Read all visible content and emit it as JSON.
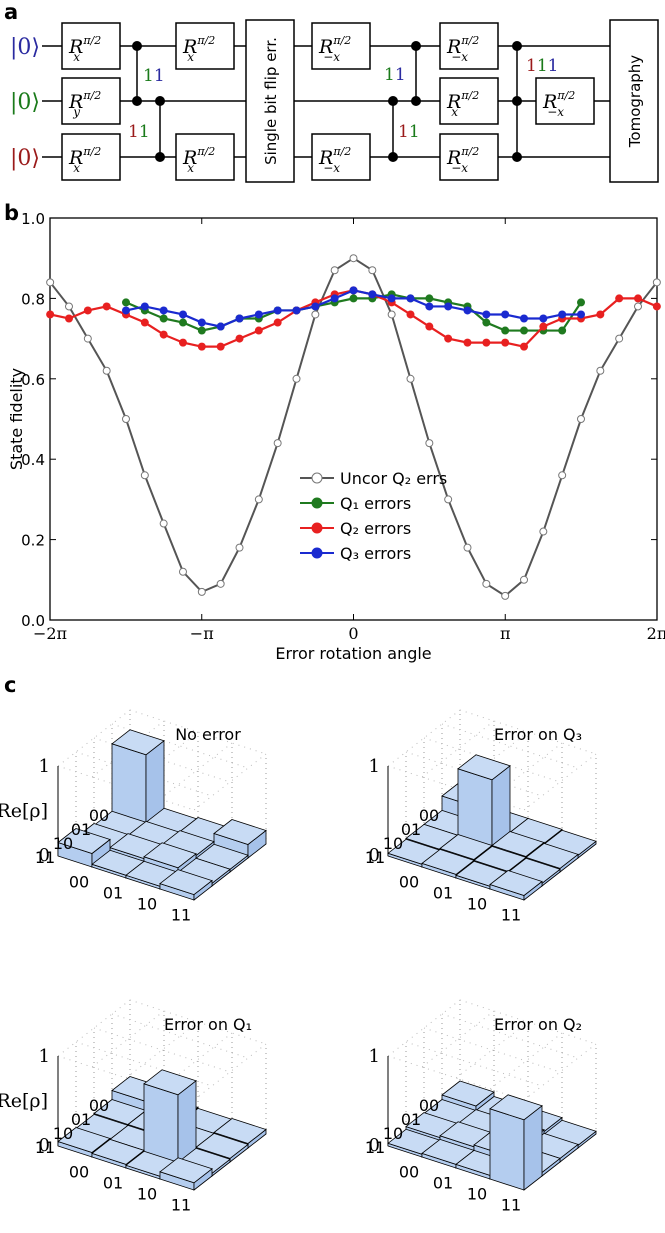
{
  "panels": {
    "a": "a",
    "b": "b",
    "c": "c"
  },
  "circuit": {
    "kets": [
      "|0⟩",
      "|0⟩",
      "|0⟩"
    ],
    "ket_colors": [
      "#2a2aa0",
      "#1a7a1a",
      "#9a1a1a"
    ],
    "gate_R": "R",
    "sub_x": "x",
    "sub_y": "y",
    "sub_negx": "−x",
    "sup_pi2": "π/2",
    "error_box": "Single bit flip err.",
    "tomography": "Tomography",
    "labels": {
      "d1_top": "11",
      "d1_bot": "11",
      "d2_top": "11",
      "d2_bot": "11",
      "d3": "111"
    },
    "label_colors": {
      "green": "#1a7a1a",
      "blue": "#2a2aa0",
      "red": "#9a1a1a"
    }
  },
  "chart_data": {
    "type": "line",
    "xlabel": "Error rotation angle",
    "ylabel": "State fidelity",
    "xlim": [
      -6.2832,
      6.2832
    ],
    "ylim": [
      0,
      1
    ],
    "x_ticks": [
      "−2π",
      "−π",
      "0",
      "π",
      "2π"
    ],
    "y_ticks": [
      "0.0",
      "0.2",
      "0.4",
      "0.6",
      "0.8",
      "1.0"
    ],
    "legend_placement": "center",
    "series": [
      {
        "name": "Uncor Q₂ errs",
        "color": "#555555",
        "x": [
          -6.28,
          -5.89,
          -5.5,
          -5.11,
          -4.71,
          -4.32,
          -3.93,
          -3.53,
          -3.14,
          -2.75,
          -2.36,
          -1.96,
          -1.57,
          -1.18,
          -0.79,
          -0.39,
          0.0,
          0.39,
          0.79,
          1.18,
          1.57,
          1.96,
          2.36,
          2.75,
          3.14,
          3.53,
          3.93,
          4.32,
          4.71,
          5.11,
          5.5,
          5.89,
          6.28
        ],
        "y": [
          0.84,
          0.78,
          0.7,
          0.62,
          0.5,
          0.36,
          0.24,
          0.12,
          0.07,
          0.09,
          0.18,
          0.3,
          0.44,
          0.6,
          0.76,
          0.87,
          0.9,
          0.87,
          0.76,
          0.6,
          0.44,
          0.3,
          0.18,
          0.09,
          0.06,
          0.1,
          0.22,
          0.36,
          0.5,
          0.62,
          0.7,
          0.78,
          0.84
        ]
      },
      {
        "name": "Q₁ errors",
        "color": "#1f7a1f",
        "x": [
          -4.71,
          -4.32,
          -3.93,
          -3.53,
          -3.14,
          -2.75,
          -2.36,
          -1.96,
          -1.57,
          -1.18,
          -0.79,
          -0.39,
          0.0,
          0.39,
          0.79,
          1.18,
          1.57,
          1.96,
          2.36,
          2.75,
          3.14,
          3.53,
          3.93,
          4.32,
          4.71
        ],
        "y": [
          0.79,
          0.77,
          0.75,
          0.74,
          0.72,
          0.73,
          0.75,
          0.75,
          0.77,
          0.77,
          0.78,
          0.79,
          0.8,
          0.8,
          0.81,
          0.8,
          0.8,
          0.79,
          0.78,
          0.74,
          0.72,
          0.72,
          0.72,
          0.72,
          0.79
        ],
        "x_extra": []
      },
      {
        "name": "Q₂ errors",
        "color": "#e82020",
        "x": [
          -6.28,
          -5.89,
          -5.5,
          -5.11,
          -4.71,
          -4.32,
          -3.93,
          -3.53,
          -3.14,
          -2.75,
          -2.36,
          -1.96,
          -1.57,
          -1.18,
          -0.79,
          -0.39,
          0.0,
          0.39,
          0.79,
          1.18,
          1.57,
          1.96,
          2.36,
          2.75,
          3.14,
          3.53,
          3.93,
          4.32,
          4.71,
          5.11,
          5.5,
          5.89,
          6.28
        ],
        "y": [
          0.76,
          0.75,
          0.77,
          0.78,
          0.76,
          0.74,
          0.71,
          0.69,
          0.68,
          0.68,
          0.7,
          0.72,
          0.74,
          0.77,
          0.79,
          0.81,
          0.82,
          0.81,
          0.79,
          0.76,
          0.73,
          0.7,
          0.69,
          0.69,
          0.69,
          0.68,
          0.73,
          0.75,
          0.75,
          0.76,
          0.8,
          0.8,
          0.78
        ]
      },
      {
        "name": "Q₃ errors",
        "color": "#1a2ad0",
        "x": [
          -4.71,
          -4.32,
          -3.93,
          -3.53,
          -3.14,
          -2.75,
          -2.36,
          -1.96,
          -1.57,
          -1.18,
          -0.79,
          -0.39,
          0.0,
          0.39,
          0.79,
          1.18,
          1.57,
          1.96,
          2.36,
          2.75,
          3.14,
          3.53,
          3.93,
          4.32,
          4.71
        ],
        "y": [
          0.77,
          0.78,
          0.77,
          0.76,
          0.74,
          0.73,
          0.75,
          0.76,
          0.77,
          0.77,
          0.78,
          0.8,
          0.82,
          0.81,
          0.8,
          0.8,
          0.78,
          0.78,
          0.77,
          0.76,
          0.76,
          0.75,
          0.75,
          0.76,
          0.76
        ]
      }
    ]
  },
  "bars3d": {
    "zlabel": "Re[ρ]",
    "z_ticks": [
      "0",
      "1"
    ],
    "axis_labels": [
      "00",
      "01",
      "10",
      "11"
    ],
    "titles": [
      "No error",
      "Error on Q₃",
      "Error on Q₁",
      "Error on Q₂"
    ],
    "matrices": [
      [
        [
          0.78,
          0.03,
          0.05,
          0.15
        ],
        [
          0.03,
          0.04,
          0.06,
          0.03
        ],
        [
          0.05,
          0.06,
          0.08,
          0.03
        ],
        [
          0.15,
          0.03,
          0.03,
          0.06
        ]
      ],
      [
        [
          0.2,
          0.04,
          0.04,
          0.03
        ],
        [
          0.04,
          0.78,
          0.05,
          0.04
        ],
        [
          0.04,
          0.05,
          0.04,
          0.03
        ],
        [
          0.03,
          0.04,
          0.03,
          0.05
        ]
      ],
      [
        [
          0.15,
          0.05,
          0.04,
          0.05
        ],
        [
          0.05,
          0.05,
          0.04,
          0.04
        ],
        [
          0.04,
          0.04,
          0.78,
          0.03
        ],
        [
          0.05,
          0.04,
          0.03,
          0.08
        ]
      ],
      [
        [
          0.1,
          0.05,
          0.06,
          0.03
        ],
        [
          0.05,
          0.06,
          0.08,
          0.04
        ],
        [
          0.06,
          0.08,
          0.1,
          0.04
        ],
        [
          0.03,
          0.04,
          0.04,
          0.78
        ]
      ]
    ]
  }
}
